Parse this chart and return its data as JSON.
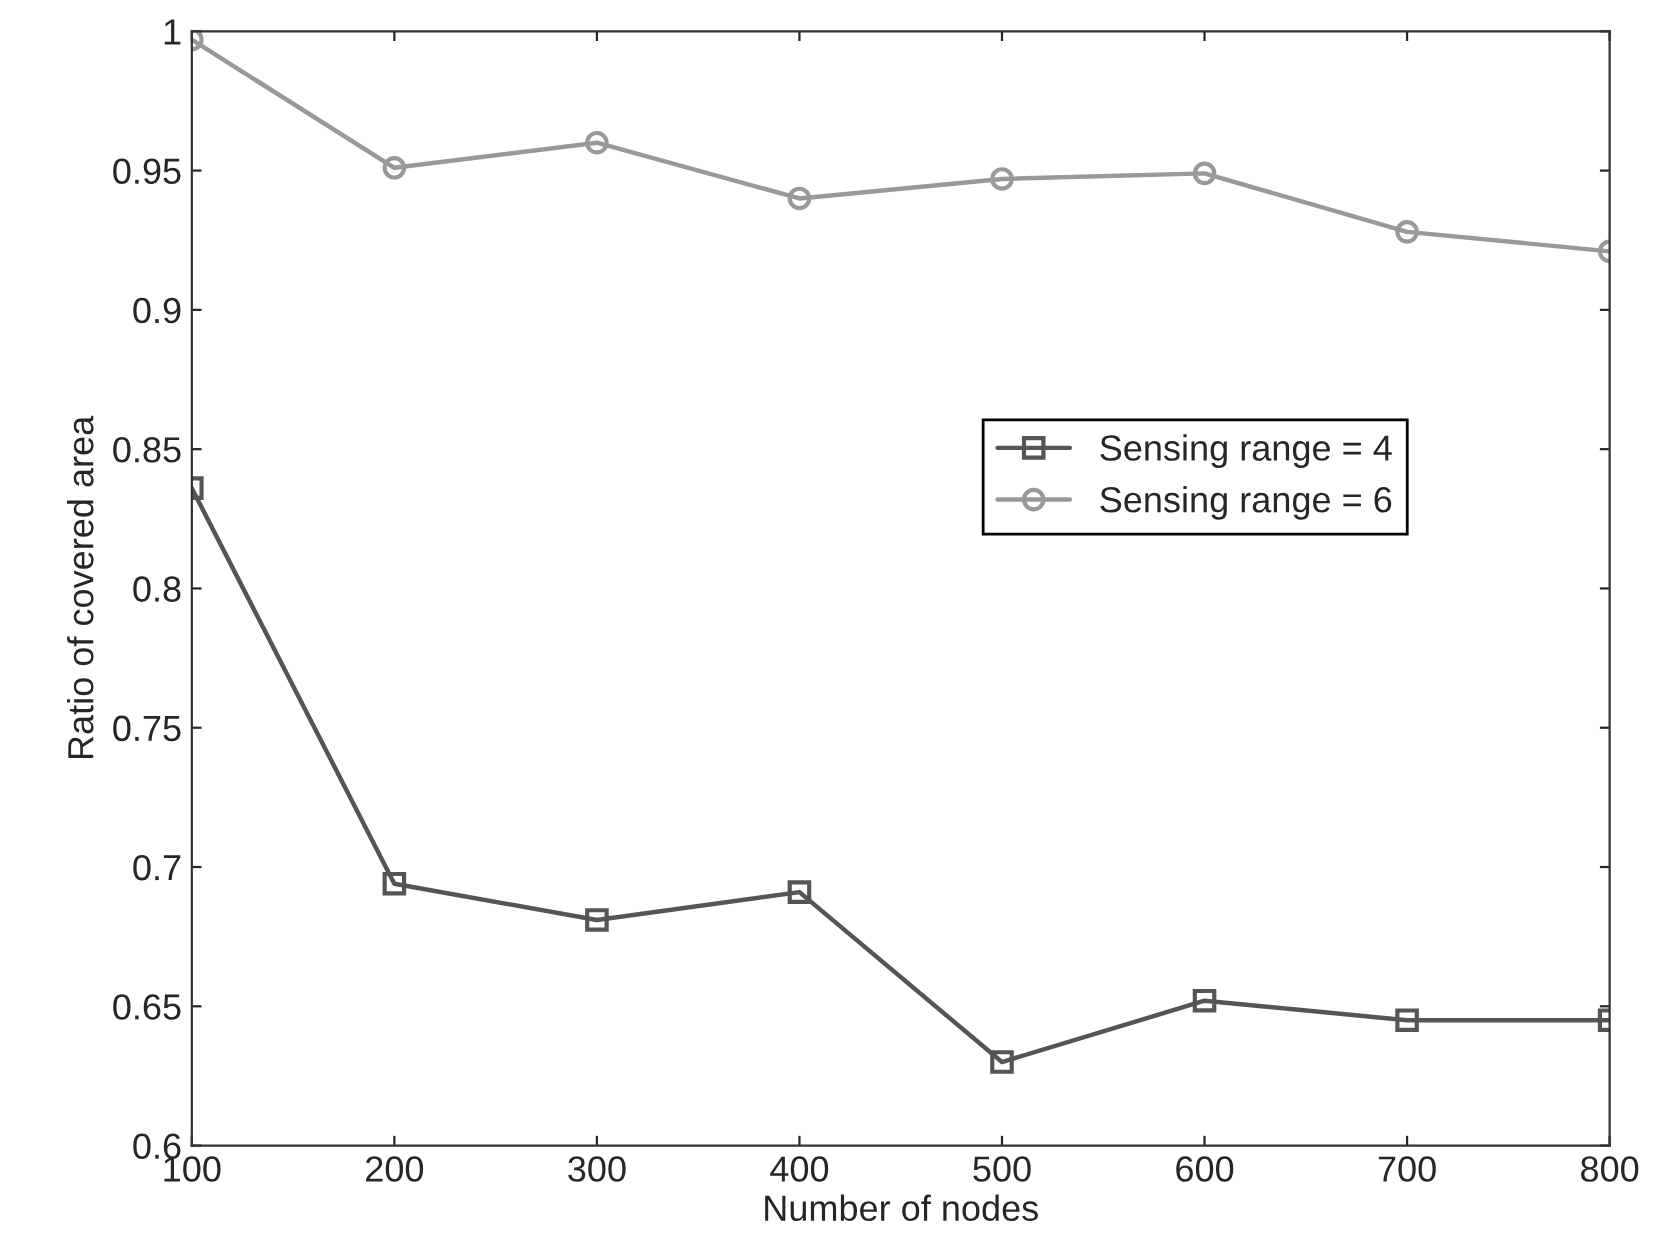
{
  "chart_data": {
    "type": "line",
    "xlabel": "Number of nodes",
    "ylabel": "Ratio of covered area",
    "x": [
      100,
      200,
      300,
      400,
      500,
      600,
      700,
      800
    ],
    "series": [
      {
        "name": "Sensing range = 4",
        "color": "#555555",
        "marker": "square",
        "values": [
          0.836,
          0.694,
          0.681,
          0.691,
          0.63,
          0.652,
          0.645,
          0.645
        ]
      },
      {
        "name": "Sensing range = 6",
        "color": "#999999",
        "marker": "circle",
        "values": [
          0.997,
          0.951,
          0.96,
          0.94,
          0.947,
          0.949,
          0.928,
          0.921
        ]
      }
    ],
    "xlim": [
      100,
      800
    ],
    "ylim": [
      0.6,
      1.0
    ],
    "xticks": [
      100,
      200,
      300,
      400,
      500,
      600,
      700,
      800
    ],
    "yticks": [
      0.6,
      0.65,
      0.7,
      0.75,
      0.8,
      0.85,
      0.9,
      0.95,
      {
        "value": 1.0,
        "label": "1"
      }
    ],
    "grid": false,
    "legend": "center right",
    "line_style": "solid"
  }
}
